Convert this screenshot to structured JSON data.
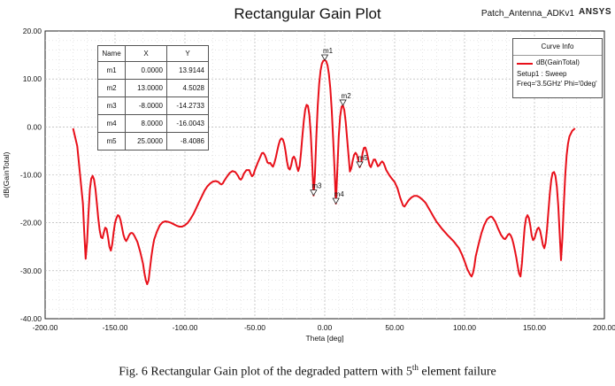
{
  "header": {
    "title": "Rectangular Gain Plot",
    "project": "Patch_Antenna_ADKv1",
    "brand": "ANSYS"
  },
  "caption": {
    "before": "Fig. 6 Rectangular Gain plot of the degraded pattern with 5",
    "sup": "th",
    "after": " element failure"
  },
  "legend": {
    "title": "Curve Info",
    "series_name": "dB(GainTotal)",
    "setup": "Setup1 : Sweep",
    "freq": "Freq='3.5GHz' Phi='0deg'"
  },
  "markers_table": {
    "headers": [
      "Name",
      "X",
      "Y"
    ],
    "rows": [
      {
        "name": "m1",
        "x": "0.0000",
        "y": "13.9144"
      },
      {
        "name": "m2",
        "x": "13.0000",
        "y": "4.5028"
      },
      {
        "name": "m3",
        "x": "-8.0000",
        "y": "-14.2733"
      },
      {
        "name": "m4",
        "x": "8.0000",
        "y": "-16.0043"
      },
      {
        "name": "m5",
        "x": "25.0000",
        "y": "-8.4086"
      }
    ]
  },
  "chart_data": {
    "type": "line",
    "title": "Rectangular Gain Plot",
    "xlabel": "Theta [deg]",
    "ylabel": "dB(GainTotal)",
    "xlim": [
      -200,
      200
    ],
    "ylim": [
      -40,
      20
    ],
    "xticks": [
      "-200.00",
      "-150.00",
      "-100.00",
      "-50.00",
      "0.00",
      "50.00",
      "100.00",
      "150.00",
      "200.00"
    ],
    "yticks": [
      "20.00",
      "10.00",
      "0.00",
      "-10.00",
      "-20.00",
      "-30.00",
      "-40.00"
    ],
    "grid": true,
    "legend_position": "top-right",
    "line_color": "#e8101a",
    "series": [
      {
        "name": "dB(GainTotal)",
        "points": [
          [
            -180,
            -0.3
          ],
          [
            -177,
            -4
          ],
          [
            -175,
            -10
          ],
          [
            -173,
            -16
          ],
          [
            -172,
            -22
          ],
          [
            -171,
            -27.5
          ],
          [
            -170,
            -24
          ],
          [
            -169,
            -18
          ],
          [
            -168,
            -13
          ],
          [
            -167,
            -10.8
          ],
          [
            -166,
            -10.2
          ],
          [
            -165,
            -11
          ],
          [
            -164,
            -13
          ],
          [
            -163,
            -16
          ],
          [
            -162,
            -19
          ],
          [
            -161,
            -21.5
          ],
          [
            -160,
            -23
          ],
          [
            -159,
            -23.2
          ],
          [
            -158,
            -22
          ],
          [
            -157,
            -21
          ],
          [
            -156,
            -21.3
          ],
          [
            -155,
            -23
          ],
          [
            -154,
            -25
          ],
          [
            -153,
            -25.8
          ],
          [
            -152,
            -24.5
          ],
          [
            -151,
            -22
          ],
          [
            -150,
            -20
          ],
          [
            -149,
            -19
          ],
          [
            -148,
            -18.4
          ],
          [
            -147,
            -18.6
          ],
          [
            -146,
            -19.5
          ],
          [
            -145,
            -21
          ],
          [
            -144,
            -22.5
          ],
          [
            -143,
            -23.4
          ],
          [
            -142,
            -23.8
          ],
          [
            -141,
            -23.3
          ],
          [
            -140,
            -22.6
          ],
          [
            -139,
            -22.2
          ],
          [
            -138,
            -22.1
          ],
          [
            -137,
            -22.3
          ],
          [
            -136,
            -22.8
          ],
          [
            -134,
            -24
          ],
          [
            -132,
            -26
          ],
          [
            -130,
            -28.5
          ],
          [
            -129,
            -30.5
          ],
          [
            -128,
            -32
          ],
          [
            -127,
            -32.8
          ],
          [
            -126,
            -32
          ],
          [
            -125,
            -29.5
          ],
          [
            -124,
            -27
          ],
          [
            -123,
            -25
          ],
          [
            -122,
            -23.5
          ],
          [
            -120,
            -21.8
          ],
          [
            -118,
            -20.5
          ],
          [
            -116,
            -19.9
          ],
          [
            -114,
            -19.7
          ],
          [
            -112,
            -19.8
          ],
          [
            -110,
            -20
          ],
          [
            -108,
            -20.3
          ],
          [
            -106,
            -20.6
          ],
          [
            -104,
            -20.8
          ],
          [
            -102,
            -20.8
          ],
          [
            -100,
            -20.5
          ],
          [
            -98,
            -20
          ],
          [
            -96,
            -19.2
          ],
          [
            -94,
            -18.2
          ],
          [
            -92,
            -17
          ],
          [
            -90,
            -15.7
          ],
          [
            -88,
            -14.5
          ],
          [
            -86,
            -13.3
          ],
          [
            -84,
            -12.4
          ],
          [
            -82,
            -11.8
          ],
          [
            -80,
            -11.4
          ],
          [
            -78,
            -11.3
          ],
          [
            -76,
            -11.5
          ],
          [
            -75,
            -11.8
          ],
          [
            -74,
            -12
          ],
          [
            -73,
            -11.8
          ],
          [
            -72,
            -11.3
          ],
          [
            -70,
            -10.4
          ],
          [
            -68,
            -9.6
          ],
          [
            -66,
            -9.2
          ],
          [
            -64,
            -9.4
          ],
          [
            -62,
            -10.2
          ],
          [
            -61,
            -10.8
          ],
          [
            -60,
            -11
          ],
          [
            -59,
            -10.6
          ],
          [
            -58,
            -9.8
          ],
          [
            -56,
            -9
          ],
          [
            -54,
            -9
          ],
          [
            -53,
            -9.8
          ],
          [
            -52,
            -10.3
          ],
          [
            -51,
            -10
          ],
          [
            -50,
            -9
          ],
          [
            -48,
            -7.5
          ],
          [
            -46,
            -6.2
          ],
          [
            -45,
            -5.5
          ],
          [
            -44,
            -5.4
          ],
          [
            -43,
            -5.8
          ],
          [
            -42,
            -6.5
          ],
          [
            -41,
            -7.4
          ],
          [
            -40,
            -7.6
          ],
          [
            -39,
            -7.5
          ],
          [
            -38,
            -8
          ],
          [
            -37,
            -8.3
          ],
          [
            -36,
            -7.5
          ],
          [
            -35,
            -6.4
          ],
          [
            -34,
            -5
          ],
          [
            -33,
            -3.7
          ],
          [
            -32,
            -2.8
          ],
          [
            -31,
            -2.4
          ],
          [
            -30,
            -2.6
          ],
          [
            -29,
            -3.5
          ],
          [
            -28,
            -5.2
          ],
          [
            -27,
            -7.2
          ],
          [
            -26,
            -8.6
          ],
          [
            -25,
            -8.9
          ],
          [
            -24,
            -8
          ],
          [
            -23,
            -6.5
          ],
          [
            -22,
            -6.2
          ],
          [
            -21,
            -6.8
          ],
          [
            -20,
            -8.2
          ],
          [
            -19,
            -9.2
          ],
          [
            -18,
            -8.2
          ],
          [
            -17,
            -5.5
          ],
          [
            -16,
            -2
          ],
          [
            -15,
            1.2
          ],
          [
            -14,
            3.6
          ],
          [
            -13,
            4.6
          ],
          [
            -12,
            4.4
          ],
          [
            -11,
            2.5
          ],
          [
            -10,
            -1.5
          ],
          [
            -9,
            -7.5
          ],
          [
            -8,
            -14.3
          ],
          [
            -7,
            -10
          ],
          [
            -6,
            -2
          ],
          [
            -5,
            4.5
          ],
          [
            -4,
            9
          ],
          [
            -3,
            11.8
          ],
          [
            -2,
            13.2
          ],
          [
            -1,
            13.8
          ],
          [
            0,
            13.9
          ],
          [
            1,
            13.7
          ],
          [
            2,
            12.8
          ],
          [
            3,
            11
          ],
          [
            4,
            8
          ],
          [
            5,
            3.5
          ],
          [
            6,
            -2.5
          ],
          [
            7,
            -9
          ],
          [
            8,
            -16
          ],
          [
            9,
            -9
          ],
          [
            10,
            -2
          ],
          [
            11,
            2.2
          ],
          [
            12,
            4.2
          ],
          [
            13,
            4.5
          ],
          [
            14,
            3.5
          ],
          [
            15,
            1
          ],
          [
            16,
            -2.5
          ],
          [
            17,
            -6
          ],
          [
            18,
            -9.3
          ],
          [
            19,
            -8.6
          ],
          [
            20,
            -7
          ],
          [
            21,
            -5.8
          ],
          [
            22,
            -5.4
          ],
          [
            23,
            -5.8
          ],
          [
            24,
            -7
          ],
          [
            25,
            -8.4
          ],
          [
            26,
            -7.6
          ],
          [
            27,
            -5.5
          ],
          [
            28,
            -4.4
          ],
          [
            29,
            -4.3
          ],
          [
            30,
            -5.2
          ],
          [
            31,
            -6.6
          ],
          [
            32,
            -8
          ],
          [
            33,
            -8.4
          ],
          [
            34,
            -7.6
          ],
          [
            35,
            -6.8
          ],
          [
            36,
            -6.8
          ],
          [
            37,
            -7.5
          ],
          [
            38,
            -8.2
          ],
          [
            39,
            -8
          ],
          [
            40,
            -7.5
          ],
          [
            41,
            -7.2
          ],
          [
            42,
            -7.5
          ],
          [
            43,
            -8.2
          ],
          [
            44,
            -9
          ],
          [
            46,
            -10
          ],
          [
            48,
            -10.8
          ],
          [
            50,
            -11.5
          ],
          [
            52,
            -12.8
          ],
          [
            54,
            -14.8
          ],
          [
            56,
            -16.4
          ],
          [
            57,
            -16.6
          ],
          [
            58,
            -16.2
          ],
          [
            60,
            -15.3
          ],
          [
            62,
            -14.7
          ],
          [
            64,
            -14.4
          ],
          [
            66,
            -14.4
          ],
          [
            68,
            -14.7
          ],
          [
            70,
            -15.2
          ],
          [
            72,
            -15.8
          ],
          [
            74,
            -16.8
          ],
          [
            76,
            -17.8
          ],
          [
            78,
            -18.8
          ],
          [
            80,
            -19.8
          ],
          [
            84,
            -21.3
          ],
          [
            88,
            -22.6
          ],
          [
            92,
            -23.8
          ],
          [
            96,
            -25.3
          ],
          [
            98,
            -26.5
          ],
          [
            100,
            -28
          ],
          [
            102,
            -29.7
          ],
          [
            104,
            -30.8
          ],
          [
            105,
            -31.2
          ],
          [
            106,
            -30.5
          ],
          [
            107,
            -29
          ],
          [
            108,
            -27
          ],
          [
            110,
            -24.5
          ],
          [
            112,
            -22.2
          ],
          [
            114,
            -20.5
          ],
          [
            116,
            -19.3
          ],
          [
            118,
            -18.8
          ],
          [
            119,
            -18.7
          ],
          [
            120,
            -18.9
          ],
          [
            122,
            -19.8
          ],
          [
            124,
            -21.2
          ],
          [
            126,
            -22.5
          ],
          [
            128,
            -23.3
          ],
          [
            129,
            -23.4
          ],
          [
            130,
            -23
          ],
          [
            131,
            -22.5
          ],
          [
            132,
            -22.3
          ],
          [
            133,
            -22.6
          ],
          [
            134,
            -23.3
          ],
          [
            135,
            -24.4
          ],
          [
            136,
            -25.8
          ],
          [
            137,
            -27.3
          ],
          [
            138,
            -29
          ],
          [
            139,
            -30.6
          ],
          [
            140,
            -31.2
          ],
          [
            141,
            -28.5
          ],
          [
            142,
            -24.5
          ],
          [
            143,
            -21
          ],
          [
            144,
            -19
          ],
          [
            145,
            -18.4
          ],
          [
            146,
            -19
          ],
          [
            147,
            -20.6
          ],
          [
            148,
            -22.6
          ],
          [
            149,
            -23.6
          ],
          [
            150,
            -23.3
          ],
          [
            151,
            -22.2
          ],
          [
            152,
            -21.3
          ],
          [
            153,
            -21
          ],
          [
            154,
            -21.6
          ],
          [
            155,
            -23
          ],
          [
            156,
            -24.6
          ],
          [
            157,
            -25.3
          ],
          [
            158,
            -24.2
          ],
          [
            159,
            -21.3
          ],
          [
            160,
            -17.5
          ],
          [
            161,
            -13.8
          ],
          [
            162,
            -11
          ],
          [
            163,
            -9.6
          ],
          [
            164,
            -9.4
          ],
          [
            165,
            -10.2
          ],
          [
            166,
            -12.5
          ],
          [
            167,
            -16.5
          ],
          [
            168,
            -22
          ],
          [
            169,
            -27.8
          ],
          [
            170,
            -23
          ],
          [
            171,
            -16
          ],
          [
            172,
            -10
          ],
          [
            173,
            -6
          ],
          [
            174,
            -3.5
          ],
          [
            175,
            -2
          ],
          [
            177,
            -0.8
          ],
          [
            179,
            -0.3
          ]
        ]
      }
    ],
    "markers": [
      {
        "name": "m1",
        "x": 0,
        "y": 13.9144
      },
      {
        "name": "m2",
        "x": 13,
        "y": 4.5028
      },
      {
        "name": "m3",
        "x": -8,
        "y": -14.2733
      },
      {
        "name": "m4",
        "x": 8,
        "y": -16.0043
      },
      {
        "name": "m5",
        "x": 25,
        "y": -8.4086
      }
    ]
  }
}
